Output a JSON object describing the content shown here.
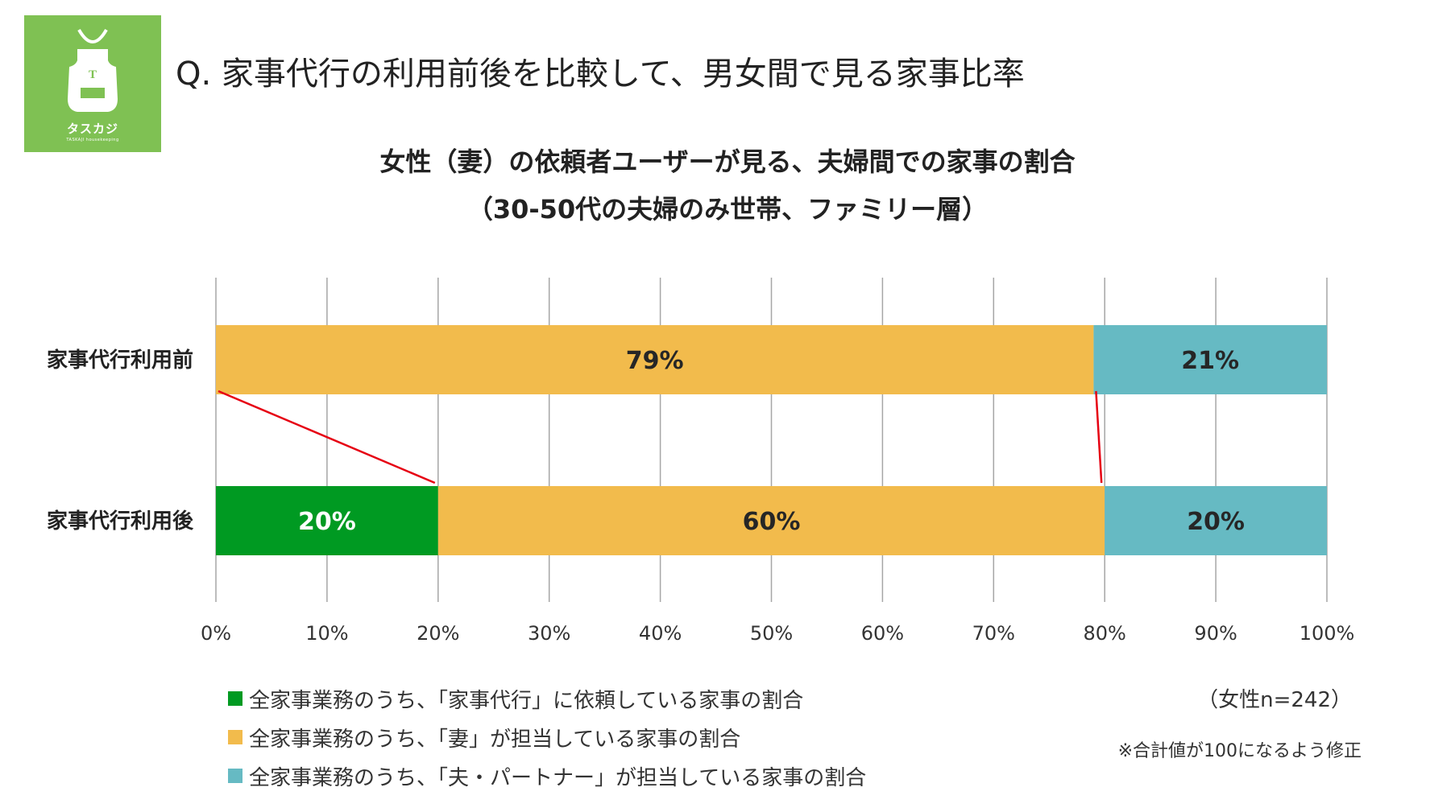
{
  "logo": {
    "letter": "T",
    "name": "タスカジ",
    "subtitle": "TASKAJI housekeeping"
  },
  "page": {
    "title": "Q. 家事代行の利用前後を比較して、男女間で見る家事比率"
  },
  "colors": {
    "housekeeping": "#009a22",
    "wife": "#f2bb4c",
    "partner": "#66bac3",
    "connector": "#e60012",
    "grid": "#a6a6a6",
    "logo_bg": "#7fc153"
  },
  "chart_data": {
    "type": "bar",
    "orientation": "horizontal",
    "stacked": true,
    "title": "女性（妻）の依頼者ユーザーが見る、夫婦間での家事の割合",
    "subtitle": "（30-50代の夫婦のみ世帯、ファミリー層）",
    "categories": [
      "家事代行利用前",
      "家事代行利用後"
    ],
    "series": [
      {
        "name": "全家事業務のうち、「家事代行」に依頼している家事の割合",
        "key": "housekeeping",
        "values": [
          0,
          20
        ],
        "labels": [
          "",
          "20%"
        ],
        "label_color": "#ffffff"
      },
      {
        "name": "全家事業務のうち、「妻」が担当している家事の割合",
        "key": "wife",
        "values": [
          79,
          60
        ],
        "labels": [
          "79%",
          "60%"
        ],
        "label_color": "#262626"
      },
      {
        "name": "全家事業務のうち、「夫・パートナー」が担当している家事の割合",
        "key": "partner",
        "values": [
          21,
          20
        ],
        "labels": [
          "21%",
          "20%"
        ],
        "label_color": "#262626"
      }
    ],
    "xlim": [
      0,
      100
    ],
    "xticks": [
      "0%",
      "10%",
      "20%",
      "30%",
      "40%",
      "50%",
      "60%",
      "70%",
      "80%",
      "90%",
      "100%"
    ],
    "grid": true,
    "legend_position": "bottom-left",
    "connector_lines": [
      {
        "from_value": 0,
        "to_value": 20
      },
      {
        "from_value": 79,
        "to_value": 80
      }
    ]
  },
  "notes": {
    "sample": "（女性n=242）",
    "correction": "※合計値が100になるよう修正"
  }
}
